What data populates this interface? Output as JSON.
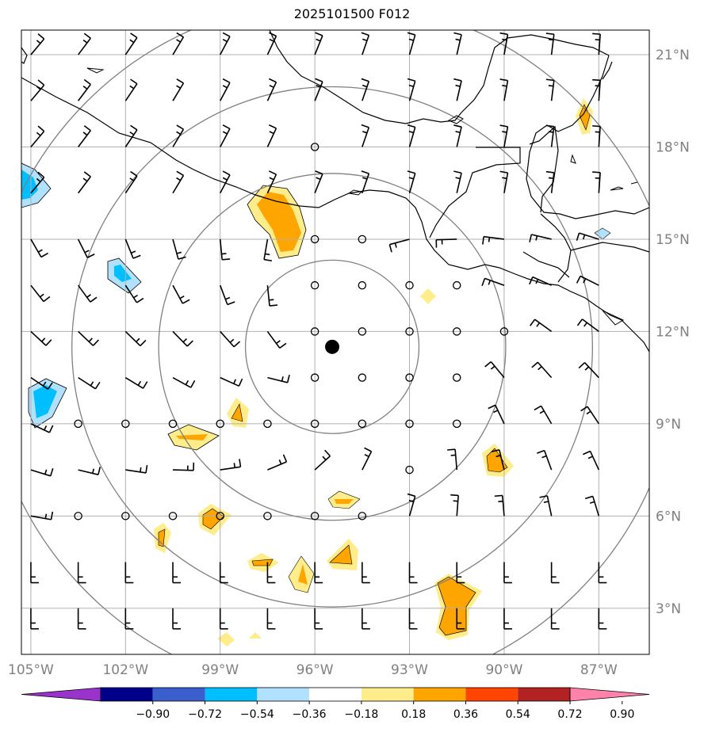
{
  "title": "2025101500 F012",
  "map": {
    "lon_range": [
      -105.3,
      -85.4
    ],
    "lat_range": [
      1.5,
      21.8
    ],
    "lon_ticks": [
      {
        "value": -105,
        "label": "105°W"
      },
      {
        "value": -102,
        "label": "102°W"
      },
      {
        "value": -99,
        "label": "99°W"
      },
      {
        "value": -96,
        "label": "96°W"
      },
      {
        "value": -93,
        "label": "93°W"
      },
      {
        "value": -90,
        "label": "90°W"
      },
      {
        "value": -87,
        "label": "87°W"
      }
    ],
    "lat_ticks": [
      {
        "value": 3,
        "label": "3°N"
      },
      {
        "value": 6,
        "label": "6°N"
      },
      {
        "value": 9,
        "label": "9°N"
      },
      {
        "value": 12,
        "label": "12°N"
      },
      {
        "value": 15,
        "label": "15°N"
      },
      {
        "value": 18,
        "label": "18°N"
      },
      {
        "value": 21,
        "label": "21°N"
      }
    ],
    "center": {
      "lon": -95.45,
      "lat": 11.5
    },
    "ring_radii_deg": [
      2.75,
      5.5,
      8.25,
      11.0
    ],
    "grid_color": "#b0b0b0",
    "ring_color": "#808080"
  },
  "colorbar": {
    "ticks": [
      "−0.90",
      "−0.72",
      "−0.54",
      "−0.36",
      "−0.18",
      "0.18",
      "0.36",
      "0.54",
      "0.72",
      "0.90"
    ],
    "colors": [
      "#9933cc",
      "#00008b",
      "#3a5fcd",
      "#00bfff",
      "#b0e2ff",
      "#ffffff",
      "#ffec8b",
      "#ffa500",
      "#ff4500",
      "#b22222",
      "#ff82ab"
    ]
  },
  "contour_colors": {
    "light_yellow": "#ffec8b",
    "orange": "#ffa500",
    "light_blue": "#b0e2ff",
    "deep_sky_blue": "#00bfff"
  }
}
